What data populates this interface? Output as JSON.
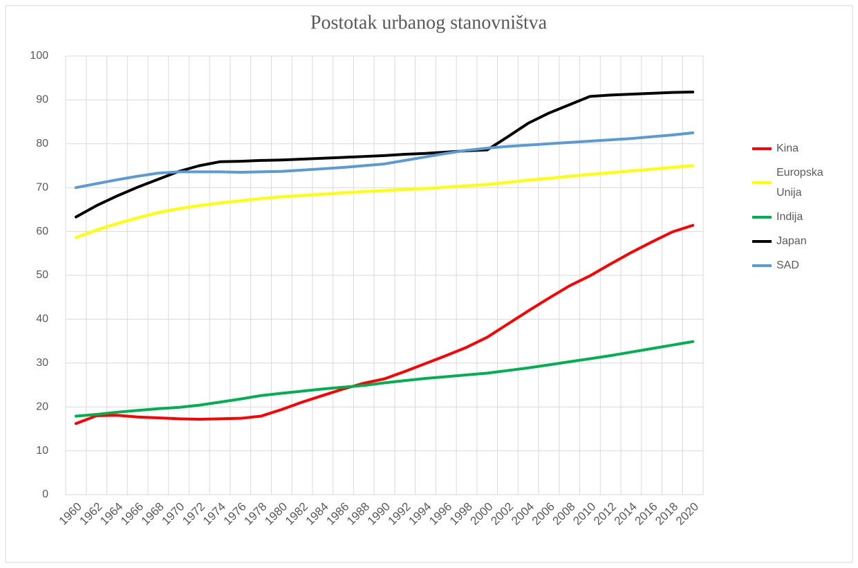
{
  "chart_data": {
    "type": "line",
    "title": "Postotak urbanog stanovništva",
    "categories": [
      "1960",
      "1962",
      "1964",
      "1966",
      "1968",
      "1970",
      "1972",
      "1974",
      "1976",
      "1978",
      "1980",
      "1982",
      "1984",
      "1986",
      "1988",
      "1990",
      "1992",
      "1994",
      "1996",
      "1998",
      "2000",
      "2002",
      "2004",
      "2006",
      "2008",
      "2010",
      "2012",
      "2014",
      "2016",
      "2018",
      "2020"
    ],
    "series": [
      {
        "name": "Kina",
        "color": "#ff0000",
        "values": [
          16.2,
          18.0,
          18.1,
          17.7,
          17.5,
          17.3,
          17.2,
          17.3,
          17.4,
          17.9,
          19.4,
          21.1,
          22.6,
          24.1,
          25.4,
          26.4,
          28.1,
          29.9,
          31.7,
          33.6,
          35.9,
          38.9,
          41.9,
          44.8,
          47.6,
          49.9,
          52.6,
          55.2,
          57.6,
          59.9,
          61.4
        ]
      },
      {
        "name": "Europska Unija",
        "color": "#ffff00",
        "values": [
          58.6,
          60.3,
          61.8,
          63.1,
          64.3,
          65.2,
          65.9,
          66.5,
          67.0,
          67.5,
          67.9,
          68.2,
          68.5,
          68.8,
          69.1,
          69.3,
          69.6,
          69.8,
          70.1,
          70.4,
          70.7,
          71.2,
          71.7,
          72.1,
          72.6,
          73.0,
          73.4,
          73.8,
          74.2,
          74.6,
          75.0
        ]
      },
      {
        "name": "Indija",
        "color": "#00b050",
        "values": [
          17.9,
          18.3,
          18.8,
          19.2,
          19.6,
          19.9,
          20.4,
          21.1,
          21.8,
          22.6,
          23.1,
          23.6,
          24.1,
          24.5,
          24.9,
          25.5,
          26.0,
          26.5,
          26.9,
          27.3,
          27.7,
          28.3,
          28.9,
          29.6,
          30.3,
          31.0,
          31.7,
          32.5,
          33.3,
          34.1,
          34.9
        ]
      },
      {
        "name": "Japan",
        "color": "#000000",
        "values": [
          63.3,
          65.9,
          68.1,
          70.1,
          71.9,
          73.7,
          75.0,
          75.9,
          76.0,
          76.2,
          76.3,
          76.5,
          76.7,
          76.9,
          77.1,
          77.3,
          77.6,
          77.8,
          78.1,
          78.4,
          78.6,
          81.6,
          84.7,
          87.0,
          88.9,
          90.8,
          91.1,
          91.3,
          91.5,
          91.7,
          91.8
        ]
      },
      {
        "name": "SAD",
        "color": "#5b9bd5",
        "values": [
          70.0,
          70.9,
          71.8,
          72.6,
          73.3,
          73.6,
          73.6,
          73.6,
          73.5,
          73.6,
          73.7,
          74.0,
          74.3,
          74.6,
          75.0,
          75.4,
          76.2,
          77.0,
          77.8,
          78.5,
          79.0,
          79.4,
          79.7,
          80.0,
          80.3,
          80.6,
          80.9,
          81.2,
          81.6,
          82.0,
          82.5
        ]
      }
    ],
    "ylim": [
      0,
      100
    ],
    "yticks": [
      0,
      10,
      20,
      30,
      40,
      50,
      60,
      70,
      80,
      90,
      100
    ],
    "grid": true,
    "legend": "right"
  }
}
